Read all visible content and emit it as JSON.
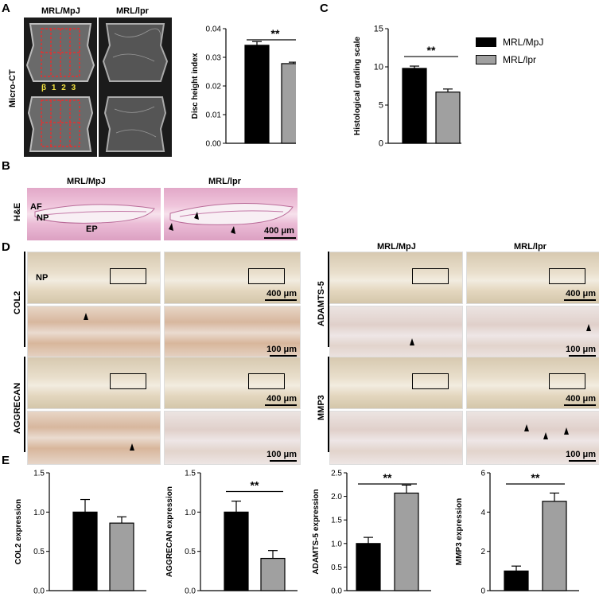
{
  "panels": {
    "A": "A",
    "B": "B",
    "C": "C",
    "D": "D",
    "E": "E"
  },
  "microct": {
    "row_label": "Micro-CT",
    "col1": "MRL/MpJ",
    "col2": "MRL/lpr",
    "beta_labels": [
      "β",
      "1",
      "2",
      "3"
    ]
  },
  "he": {
    "row_label": "H&E",
    "col1": "MRL/MpJ",
    "col2": "MRL/lpr",
    "af": "AF",
    "np": "NP",
    "ep": "EP",
    "scale": "400 μm"
  },
  "ihc": {
    "col1": "MRL/MpJ",
    "col2": "MRL/lpr",
    "col2b": "MRL/MpJ",
    "col2c": "MRL/lpr",
    "markers": [
      "COL2",
      "AGGRECAN",
      "ADAMTS-5",
      "MMP3"
    ],
    "np": "NP",
    "scale_low": "400 μm",
    "scale_high": "100 μm"
  },
  "legend": {
    "items": [
      {
        "name": "MRL/MpJ",
        "color": "#000000"
      },
      {
        "name": "MRL/lpr",
        "color": "#a0a0a0"
      }
    ]
  },
  "sig": "**",
  "chart_data": [
    {
      "type": "bar",
      "categories": [
        "MRL/MpJ",
        "MRL/lpr"
      ],
      "values": [
        0.0342,
        0.0278
      ],
      "errors": [
        0.0013,
        0.0005
      ],
      "ylabel": "Disc height index",
      "ylim": [
        0,
        0.04
      ],
      "yticks": [
        "0.00",
        "0.01",
        "0.02",
        "0.03",
        "0.04"
      ],
      "significance": "**"
    },
    {
      "type": "bar",
      "categories": [
        "MRL/MpJ",
        "MRL/lpr"
      ],
      "values": [
        9.8,
        6.7
      ],
      "errors": [
        0.3,
        0.4
      ],
      "ylabel": "Histological grading scale",
      "ylim": [
        0,
        15
      ],
      "yticks": [
        "0",
        "5",
        "10",
        "15"
      ],
      "significance": "**"
    },
    {
      "type": "bar",
      "categories": [
        "MRL/MpJ",
        "MRL/lpr"
      ],
      "values": [
        1.0,
        0.86
      ],
      "errors": [
        0.16,
        0.08
      ],
      "ylabel": "COL2 expression",
      "ylim": [
        0,
        1.5
      ],
      "yticks": [
        "0.0",
        "0.5",
        "1.0",
        "1.5"
      ],
      "significance": ""
    },
    {
      "type": "bar",
      "categories": [
        "MRL/MpJ",
        "MRL/lpr"
      ],
      "values": [
        1.0,
        0.41
      ],
      "errors": [
        0.14,
        0.1
      ],
      "ylabel": "AGGRECAN expression",
      "ylim": [
        0,
        1.5
      ],
      "yticks": [
        "0.0",
        "0.5",
        "1.0",
        "1.5"
      ],
      "significance": "**"
    },
    {
      "type": "bar",
      "categories": [
        "MRL/MpJ",
        "MRL/lpr"
      ],
      "values": [
        1.0,
        2.07
      ],
      "errors": [
        0.13,
        0.17
      ],
      "ylabel": "ADAMTS-5 expression",
      "ylim": [
        0,
        2.5
      ],
      "yticks": [
        "0.0",
        "0.5",
        "1.0",
        "1.5",
        "2.0",
        "2.5"
      ],
      "significance": "**"
    },
    {
      "type": "bar",
      "categories": [
        "MRL/MpJ",
        "MRL/lpr"
      ],
      "values": [
        1.0,
        4.55
      ],
      "errors": [
        0.25,
        0.42
      ],
      "ylabel": "MMP3 expression",
      "ylim": [
        0,
        6
      ],
      "yticks": [
        "0",
        "2",
        "4",
        "6"
      ],
      "significance": "**"
    }
  ]
}
